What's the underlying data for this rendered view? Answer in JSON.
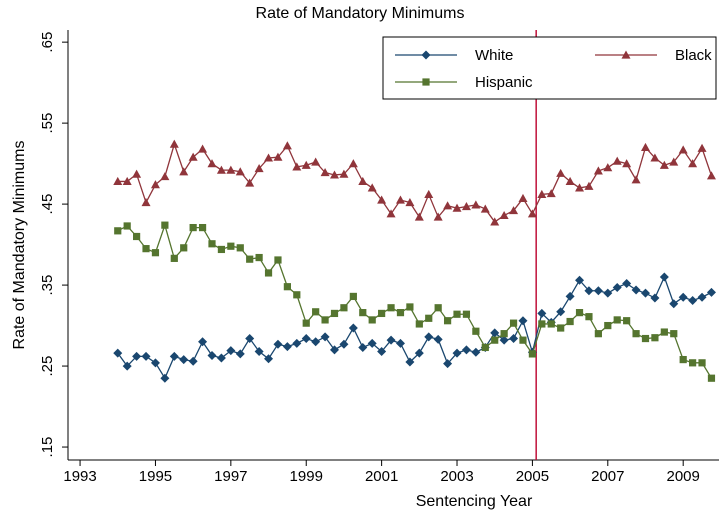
{
  "chart_data": {
    "type": "line",
    "title": "Rate of Mandatory Minimums",
    "x_label": "Sentencing Year",
    "y_label": "Rate of Mandatory Minimums",
    "x": [
      1994,
      1994.25,
      1994.5,
      1994.75,
      1995,
      1995.25,
      1995.5,
      1995.75,
      1996,
      1996.25,
      1996.5,
      1996.75,
      1997,
      1997.25,
      1997.5,
      1997.75,
      1998,
      1998.25,
      1998.5,
      1998.75,
      1999,
      1999.25,
      1999.5,
      1999.75,
      2000,
      2000.25,
      2000.5,
      2000.75,
      2001,
      2001.25,
      2001.5,
      2001.75,
      2002,
      2002.25,
      2002.5,
      2002.75,
      2003,
      2003.25,
      2003.5,
      2003.75,
      2004,
      2004.25,
      2004.5,
      2004.75,
      2005,
      2005.25,
      2005.5,
      2005.75,
      2006,
      2006.25,
      2006.5,
      2006.75,
      2007,
      2007.25,
      2007.5,
      2007.75,
      2008,
      2008.25,
      2008.5,
      2008.75,
      2009,
      2009.25,
      2009.5,
      2009.75
    ],
    "series": [
      {
        "name": "White",
        "color": "#1a476f",
        "marker": "diamond",
        "values": [
          0.266,
          0.25,
          0.262,
          0.262,
          0.254,
          0.235,
          0.262,
          0.258,
          0.256,
          0.28,
          0.263,
          0.26,
          0.269,
          0.265,
          0.284,
          0.268,
          0.259,
          0.277,
          0.274,
          0.278,
          0.284,
          0.28,
          0.286,
          0.27,
          0.277,
          0.297,
          0.273,
          0.278,
          0.268,
          0.282,
          0.278,
          0.255,
          0.266,
          0.286,
          0.283,
          0.253,
          0.266,
          0.27,
          0.267,
          0.273,
          0.291,
          0.282,
          0.284,
          0.306,
          0.267,
          0.315,
          0.304,
          0.317,
          0.336,
          0.356,
          0.343,
          0.343,
          0.34,
          0.347,
          0.352,
          0.344,
          0.34,
          0.334,
          0.36,
          0.327,
          0.335,
          0.331,
          0.335,
          0.341
        ]
      },
      {
        "name": "Black",
        "color": "#90353b",
        "marker": "triangle",
        "values": [
          0.478,
          0.478,
          0.487,
          0.452,
          0.474,
          0.484,
          0.524,
          0.49,
          0.508,
          0.518,
          0.5,
          0.492,
          0.492,
          0.49,
          0.476,
          0.494,
          0.507,
          0.508,
          0.522,
          0.496,
          0.498,
          0.502,
          0.489,
          0.486,
          0.487,
          0.5,
          0.478,
          0.47,
          0.455,
          0.438,
          0.455,
          0.452,
          0.434,
          0.462,
          0.434,
          0.448,
          0.445,
          0.447,
          0.449,
          0.444,
          0.428,
          0.436,
          0.442,
          0.457,
          0.438,
          0.462,
          0.463,
          0.488,
          0.478,
          0.47,
          0.472,
          0.491,
          0.495,
          0.503,
          0.5,
          0.48,
          0.52,
          0.507,
          0.498,
          0.502,
          0.517,
          0.5,
          0.519,
          0.485
        ]
      },
      {
        "name": "Hispanic",
        "color": "#55752f",
        "marker": "square",
        "values": [
          0.417,
          0.423,
          0.41,
          0.395,
          0.39,
          0.424,
          0.383,
          0.396,
          0.421,
          0.421,
          0.401,
          0.394,
          0.398,
          0.396,
          0.382,
          0.384,
          0.365,
          0.381,
          0.348,
          0.338,
          0.303,
          0.317,
          0.307,
          0.315,
          0.322,
          0.336,
          0.316,
          0.307,
          0.315,
          0.322,
          0.316,
          0.323,
          0.302,
          0.309,
          0.322,
          0.306,
          0.314,
          0.314,
          0.293,
          0.273,
          0.282,
          0.29,
          0.303,
          0.282,
          0.265,
          0.302,
          0.302,
          0.297,
          0.305,
          0.316,
          0.311,
          0.29,
          0.3,
          0.307,
          0.306,
          0.29,
          0.284,
          0.285,
          0.292,
          0.29,
          0.258,
          0.254,
          0.254,
          0.235
        ]
      }
    ],
    "vline": 2005.1,
    "vline_color": "#c0103a",
    "xlim": [
      1992.68,
      2009.95
    ],
    "xticks": [
      1993,
      1995,
      1997,
      1999,
      2001,
      2003,
      2005,
      2007,
      2009
    ],
    "ylim": [
      0.134,
      0.665
    ],
    "yticks": [
      {
        "value": 0.15,
        "label": ".15"
      },
      {
        "value": 0.25,
        "label": ".25"
      },
      {
        "value": 0.35,
        "label": ".35"
      },
      {
        "value": 0.45,
        "label": ".45"
      },
      {
        "value": 0.55,
        "label": ".55"
      },
      {
        "value": 0.65,
        "label": ".65"
      }
    ],
    "grid": false
  }
}
